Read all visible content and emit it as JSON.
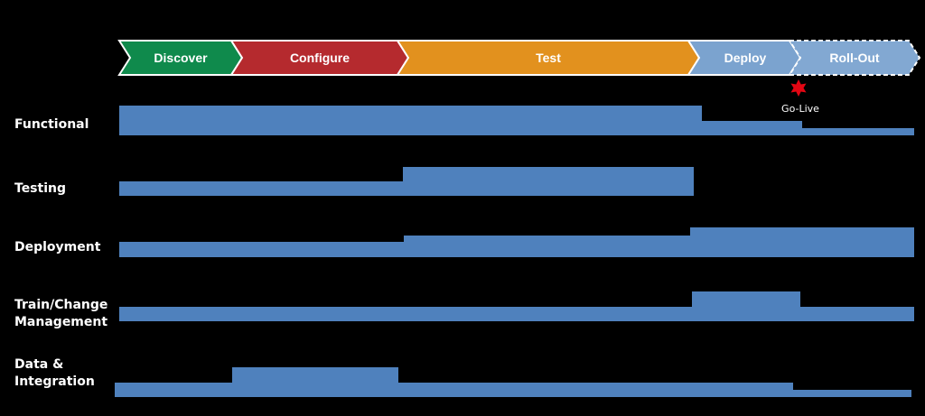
{
  "colors": {
    "background": "#000000",
    "bar": "#4f81bd",
    "discover": "#0f8a4c",
    "configure": "#b52a2e",
    "test": "#e2911e",
    "deploy": "#7ba3cf",
    "rollout": "#82a8d2",
    "golive_star": "#e30613"
  },
  "phases": [
    {
      "label": "Discover",
      "color": "#0f8a4c",
      "style": "solid"
    },
    {
      "label": "Configure",
      "color": "#b52a2e",
      "style": "solid"
    },
    {
      "label": "Test",
      "color": "#e2911e",
      "style": "solid"
    },
    {
      "label": "Deploy",
      "color": "#7ba3cf",
      "style": "solid"
    },
    {
      "label": "Roll-Out",
      "color": "#82a8d2",
      "style": "dashed"
    }
  ],
  "milestone": {
    "label": "Go-Live",
    "icon": "star-icon"
  },
  "rows": [
    {
      "label_lines": [
        "Functional"
      ],
      "key": "functional"
    },
    {
      "label_lines": [
        "Testing"
      ],
      "key": "testing"
    },
    {
      "label_lines": [
        "Deployment"
      ],
      "key": "deployment"
    },
    {
      "label_lines": [
        "Train/Change",
        "Management"
      ],
      "key": "train-change-management"
    },
    {
      "label_lines": [
        "Data &",
        "Integration"
      ],
      "key": "data-integration"
    }
  ]
}
